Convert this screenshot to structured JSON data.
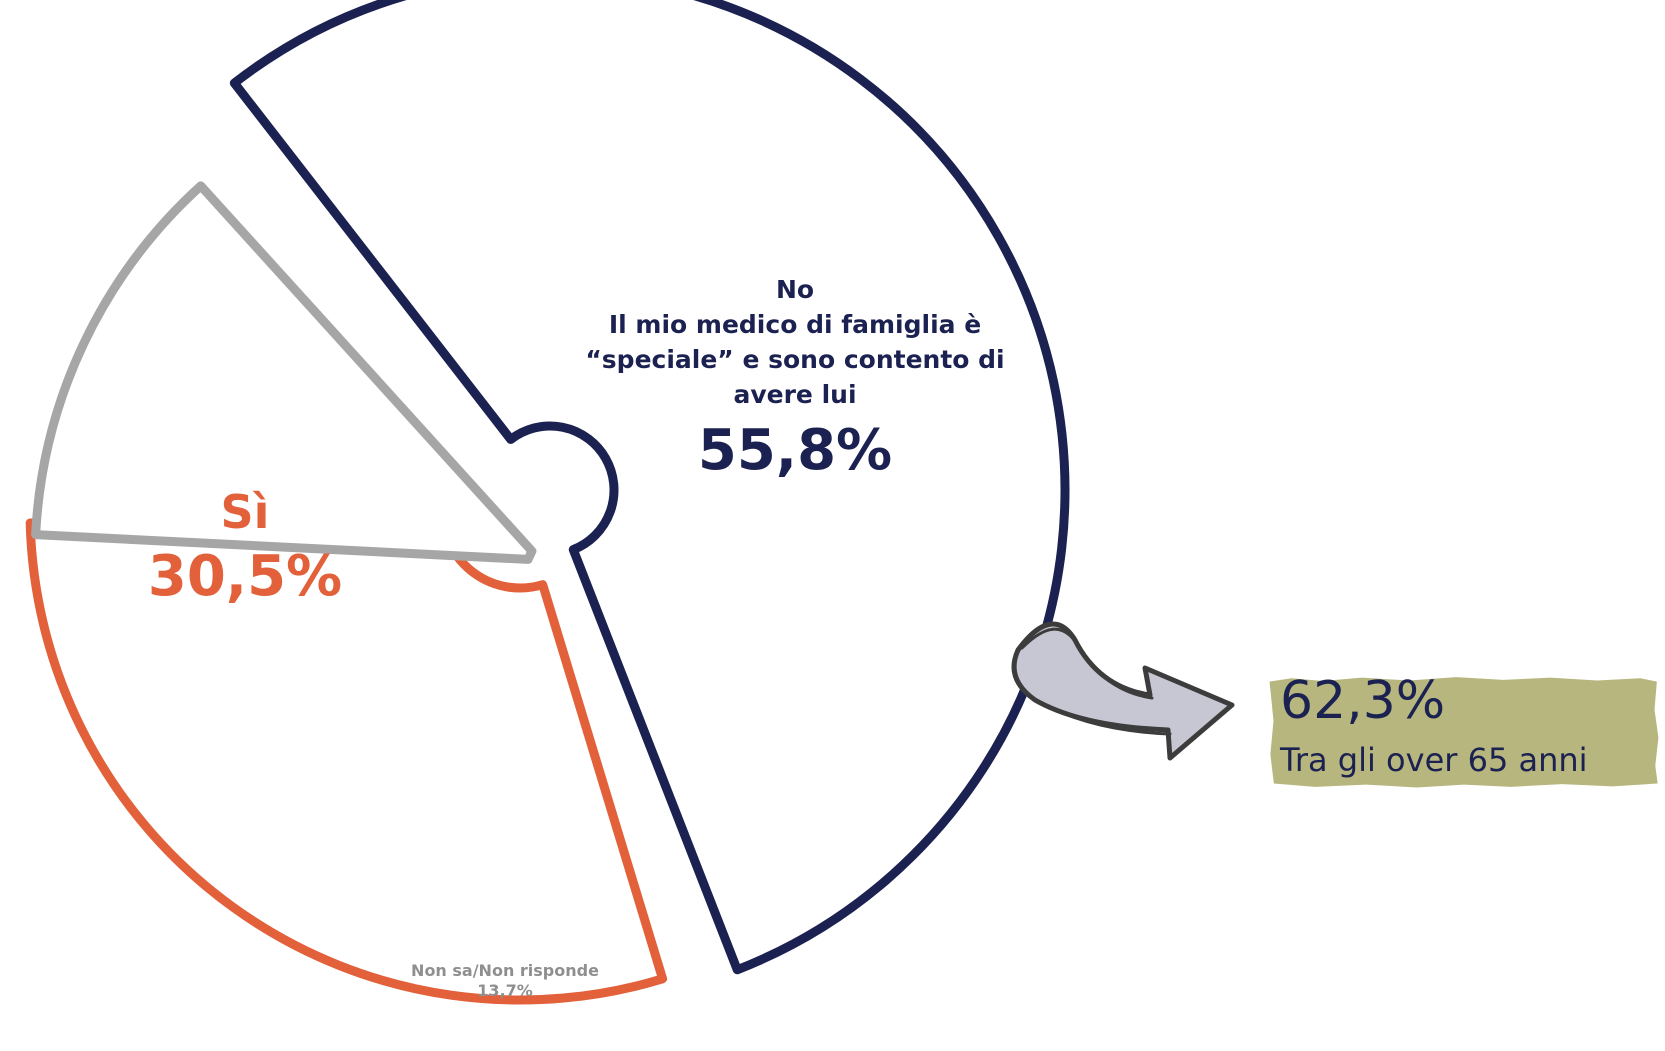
{
  "chart_data": {
    "type": "pie",
    "slices": [
      {
        "label_lines": [
          "No",
          "Il mio medico di famiglia è",
          "“speciale” e sono contento di",
          "avere lui"
        ],
        "value": 55.8,
        "value_text": "55,8%",
        "color": "#1b2150"
      },
      {
        "label_lines": [
          "Sì"
        ],
        "value": 30.5,
        "value_text": "30,5%",
        "color": "#e2603a"
      },
      {
        "label_lines": [
          "Non sa/Non risponde"
        ],
        "value": 13.7,
        "value_text": "13,7%",
        "color": "#a6a6a6"
      }
    ],
    "callout": {
      "value_text": "62,3%",
      "text": "Tra gli over 65 anni",
      "box_color": "#b6b67e",
      "arrow_color": "#3c3c3c",
      "arrow_fill": "#c7c7d3"
    }
  }
}
